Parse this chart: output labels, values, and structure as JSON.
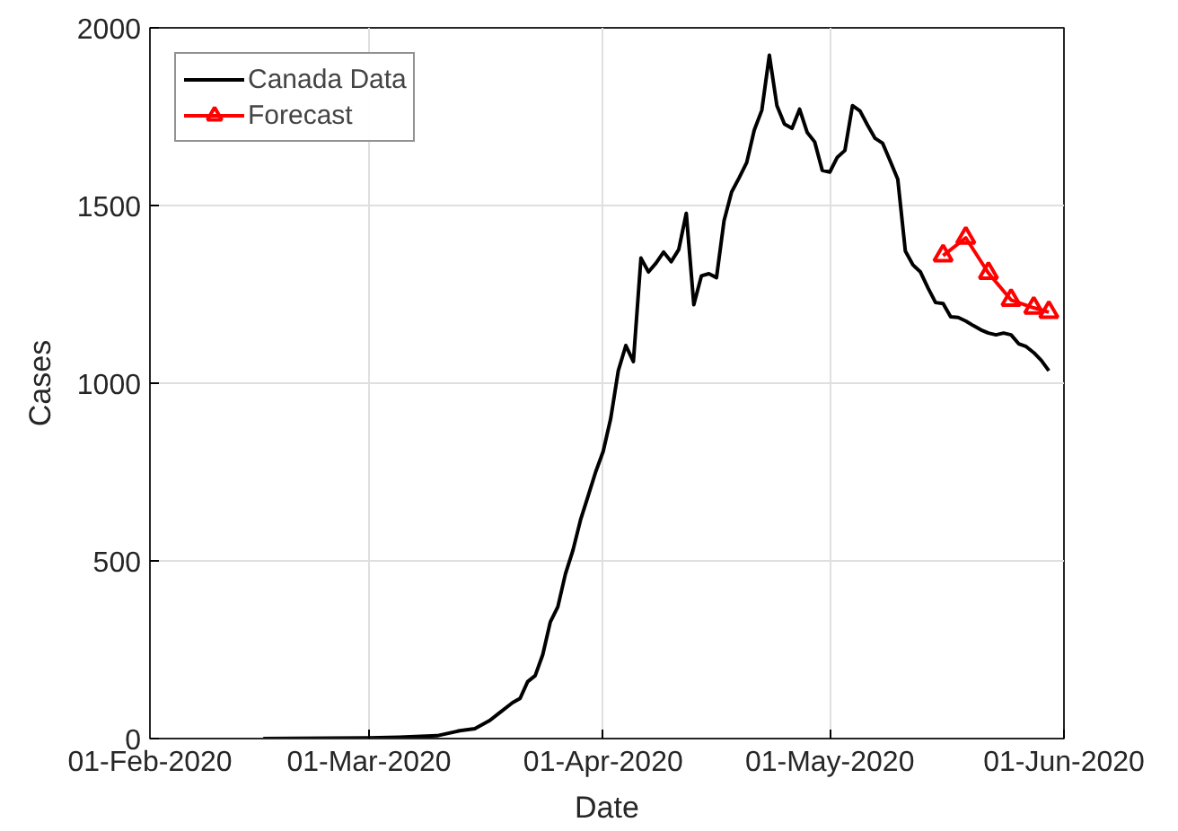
{
  "chart_data": {
    "type": "line",
    "xlabel": "Date",
    "ylabel": "Cases",
    "xlim": [
      "2020-02-01",
      "2020-06-01"
    ],
    "ylim": [
      0,
      2000
    ],
    "xticks": [
      {
        "value": "2020-02-01",
        "label": "01-Feb-2020"
      },
      {
        "value": "2020-03-01",
        "label": "01-Mar-2020"
      },
      {
        "value": "2020-04-01",
        "label": "01-Apr-2020"
      },
      {
        "value": "2020-05-01",
        "label": "01-May-2020"
      },
      {
        "value": "2020-06-01",
        "label": "01-Jun-2020"
      }
    ],
    "yticks": [
      0,
      500,
      1000,
      1500,
      2000
    ],
    "grid": true,
    "legend": "top left",
    "line_style": "solid",
    "series": [
      {
        "name": "Canada Data",
        "color": "#000000",
        "marker": "none",
        "x": [
          "2020-02-16",
          "2020-02-25",
          "2020-03-01",
          "2020-03-05",
          "2020-03-10",
          "2020-03-13",
          "2020-03-15",
          "2020-03-17",
          "2020-03-18",
          "2020-03-20",
          "2020-03-21",
          "2020-03-22",
          "2020-03-23",
          "2020-03-24",
          "2020-03-25",
          "2020-03-26",
          "2020-03-27",
          "2020-03-28",
          "2020-03-29",
          "2020-03-30",
          "2020-03-31",
          "2020-04-01",
          "2020-04-02",
          "2020-04-03",
          "2020-04-04",
          "2020-04-05",
          "2020-04-06",
          "2020-04-07",
          "2020-04-08",
          "2020-04-09",
          "2020-04-10",
          "2020-04-11",
          "2020-04-12",
          "2020-04-13",
          "2020-04-14",
          "2020-04-15",
          "2020-04-16",
          "2020-04-17",
          "2020-04-18",
          "2020-04-19",
          "2020-04-20",
          "2020-04-21",
          "2020-04-22",
          "2020-04-23",
          "2020-04-24",
          "2020-04-25",
          "2020-04-26",
          "2020-04-27",
          "2020-04-28",
          "2020-04-29",
          "2020-04-30",
          "2020-05-01",
          "2020-05-02",
          "2020-05-03",
          "2020-05-04",
          "2020-05-05",
          "2020-05-06",
          "2020-05-07",
          "2020-05-08",
          "2020-05-09",
          "2020-05-10",
          "2020-05-11",
          "2020-05-12",
          "2020-05-13",
          "2020-05-14",
          "2020-05-15",
          "2020-05-16",
          "2020-05-17",
          "2020-05-18",
          "2020-05-19",
          "2020-05-20",
          "2020-05-21",
          "2020-05-22",
          "2020-05-23",
          "2020-05-24",
          "2020-05-25",
          "2020-05-26",
          "2020-05-27",
          "2020-05-28",
          "2020-05-29",
          "2020-05-30"
        ],
        "values": [
          0,
          1,
          2,
          4,
          8,
          22,
          28,
          51,
          68,
          101,
          113,
          160,
          177,
          236,
          328,
          371,
          463,
          530,
          615,
          682,
          750,
          808,
          901,
          1035,
          1106,
          1061,
          1352,
          1313,
          1338,
          1369,
          1342,
          1376,
          1478,
          1221,
          1302,
          1308,
          1297,
          1457,
          1538,
          1578,
          1621,
          1712,
          1768,
          1923,
          1781,
          1729,
          1717,
          1771,
          1706,
          1679,
          1599,
          1594,
          1636,
          1655,
          1781,
          1766,
          1726,
          1689,
          1675,
          1625,
          1574,
          1372,
          1333,
          1313,
          1268,
          1227,
          1224,
          1187,
          1185,
          1175,
          1162,
          1150,
          1141,
          1136,
          1141,
          1136,
          1111,
          1103,
          1086,
          1064,
          1035
        ]
      },
      {
        "name": "Forecast",
        "color": "#ff0000",
        "marker": "triangle",
        "x": [
          "2020-05-16",
          "2020-05-19",
          "2020-05-22",
          "2020-05-25",
          "2020-05-28",
          "2020-05-30"
        ],
        "values": [
          1359,
          1409,
          1310,
          1234,
          1212,
          1200
        ]
      }
    ]
  }
}
